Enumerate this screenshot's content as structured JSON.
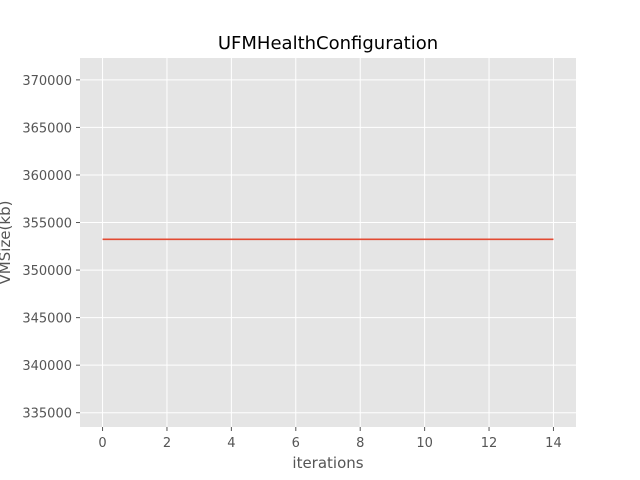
{
  "chart_data": {
    "type": "line",
    "title": "UFMHealthConfiguration",
    "xlabel": "iterations",
    "ylabel": "VMSize(kb)",
    "xlim": [
      -0.7,
      14.7
    ],
    "ylim": [
      333500,
      372300
    ],
    "xticks": [
      0,
      2,
      4,
      6,
      8,
      10,
      12,
      14
    ],
    "yticks": [
      335000,
      340000,
      345000,
      350000,
      355000,
      360000,
      365000,
      370000
    ],
    "grid": true,
    "legend": "none",
    "series": [
      {
        "color": "#E24A33",
        "x": [
          0,
          1,
          2,
          3,
          4,
          5,
          6,
          7,
          8,
          9,
          10,
          11,
          12,
          13,
          14
        ],
        "values": [
          353240,
          353240,
          353240,
          353240,
          353240,
          353240,
          353240,
          353240,
          353240,
          353240,
          353240,
          353240,
          353240,
          353240,
          353240
        ]
      }
    ]
  },
  "colors": {
    "plot_background": "#E5E5E5",
    "grid": "#FFFFFF",
    "tick": "#555555"
  }
}
